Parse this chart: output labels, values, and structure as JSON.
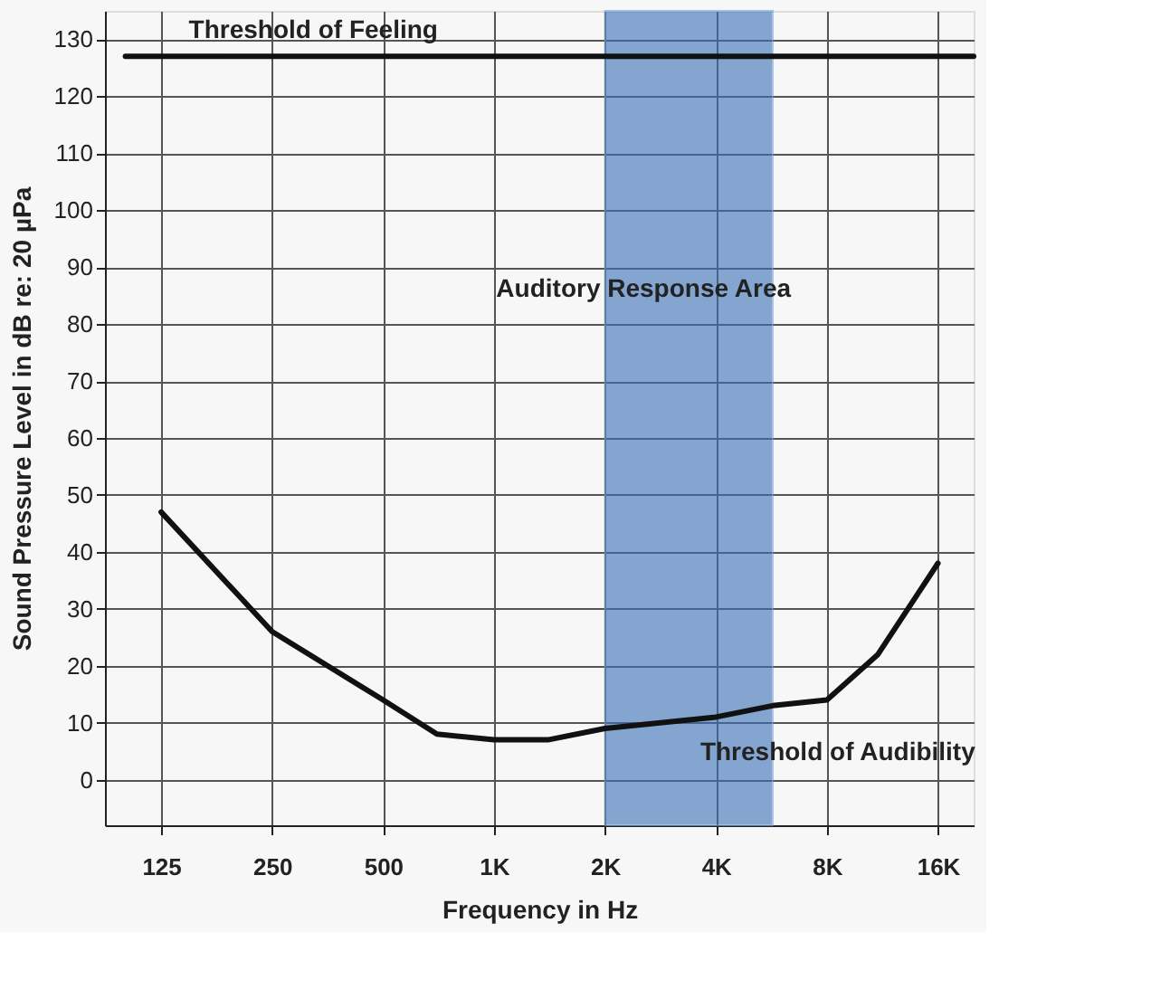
{
  "chart_data": {
    "type": "line",
    "xlabel": "Frequency in Hz",
    "ylabel": "Sound Pressure Level in dB re: 20 µPa",
    "log": "x",
    "grid": true,
    "marker": "none",
    "line_style": "solid",
    "xlim": [
      88,
      20000
    ],
    "ylim": [
      -8,
      135
    ],
    "xticks": [
      125,
      250,
      500,
      {
        "value": 1000,
        "label": "1K"
      },
      {
        "value": 2000,
        "label": "2K"
      },
      {
        "value": 4000,
        "label": "4K"
      },
      {
        "value": 8000,
        "label": "8K"
      },
      {
        "value": 16000,
        "label": "16K"
      }
    ],
    "yticks": [
      0,
      10,
      20,
      30,
      40,
      50,
      60,
      70,
      80,
      90,
      100,
      110,
      120,
      130
    ],
    "series": [
      {
        "name": "Threshold of Audibility",
        "color": "#111111",
        "x": [
          125,
          250,
          500,
          700,
          1000,
          1400,
          2000,
          4000,
          5700,
          8000,
          11000,
          16000
        ],
        "values": [
          47,
          26,
          14,
          8,
          7,
          7,
          9,
          11,
          13,
          14,
          22,
          38
        ]
      },
      {
        "name": "Threshold of Feeling",
        "color": "#111111",
        "x": [
          100,
          20000
        ],
        "values": [
          127,
          127
        ]
      }
    ],
    "bands": [
      {
        "axis": "x",
        "from": 2000,
        "to": 5700,
        "color": "#3a70b8"
      }
    ],
    "annotations": [
      "Auditory Response Area"
    ]
  }
}
